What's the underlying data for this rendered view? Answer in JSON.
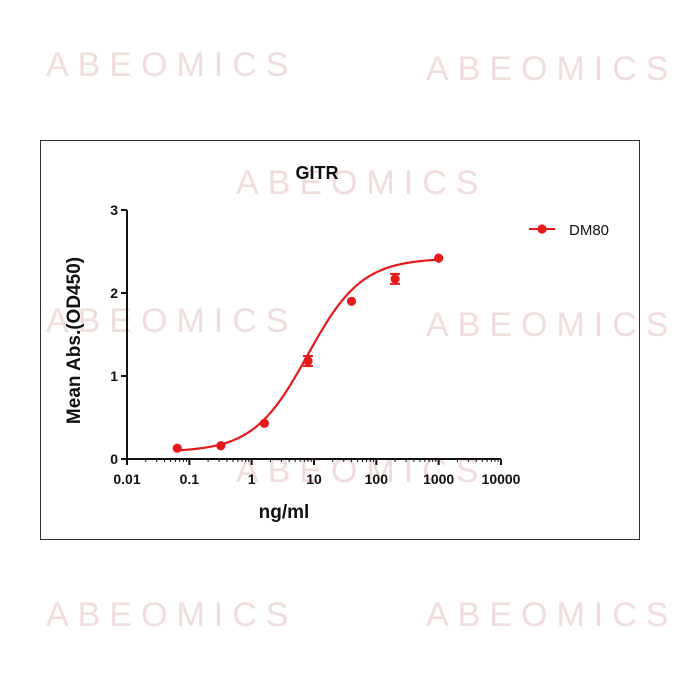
{
  "watermark": "ABEOMICS",
  "colors": {
    "series": "#e8191c",
    "axis": "#111111",
    "frame": "#333333",
    "watermark": "#f1dcdc"
  },
  "chart_data": {
    "type": "scatter",
    "title": "GITR",
    "xlabel": "ng/ml",
    "ylabel": "Mean Abs.(OD450)",
    "xscale": "log",
    "xlim": [
      0.01,
      10000
    ],
    "ylim": [
      0,
      3
    ],
    "xticks": [
      0.01,
      0.1,
      1,
      10,
      100,
      1000,
      10000
    ],
    "xtick_labels": [
      "0.01",
      "0.1",
      "1",
      "10",
      "100",
      "1000",
      "10000"
    ],
    "yticks": [
      0,
      1,
      2,
      3
    ],
    "ytick_labels": [
      "0",
      "1",
      "2",
      "3"
    ],
    "grid": false,
    "legend_position": "top-right",
    "series": [
      {
        "name": "DM80",
        "color": "#e8191c",
        "marker": "circle",
        "fit": "sigmoidal curve",
        "x": [
          0.064,
          0.32,
          1.6,
          8,
          40,
          200,
          1000
        ],
        "y": [
          0.13,
          0.16,
          0.43,
          1.18,
          1.9,
          2.17,
          2.42
        ],
        "error": [
          0.01,
          0.01,
          0.02,
          0.06,
          0.02,
          0.06,
          0.01
        ]
      }
    ],
    "fit_params": {
      "bottom": 0.085,
      "top": 2.42,
      "ec50": 7.9,
      "hill": 1.0
    }
  }
}
